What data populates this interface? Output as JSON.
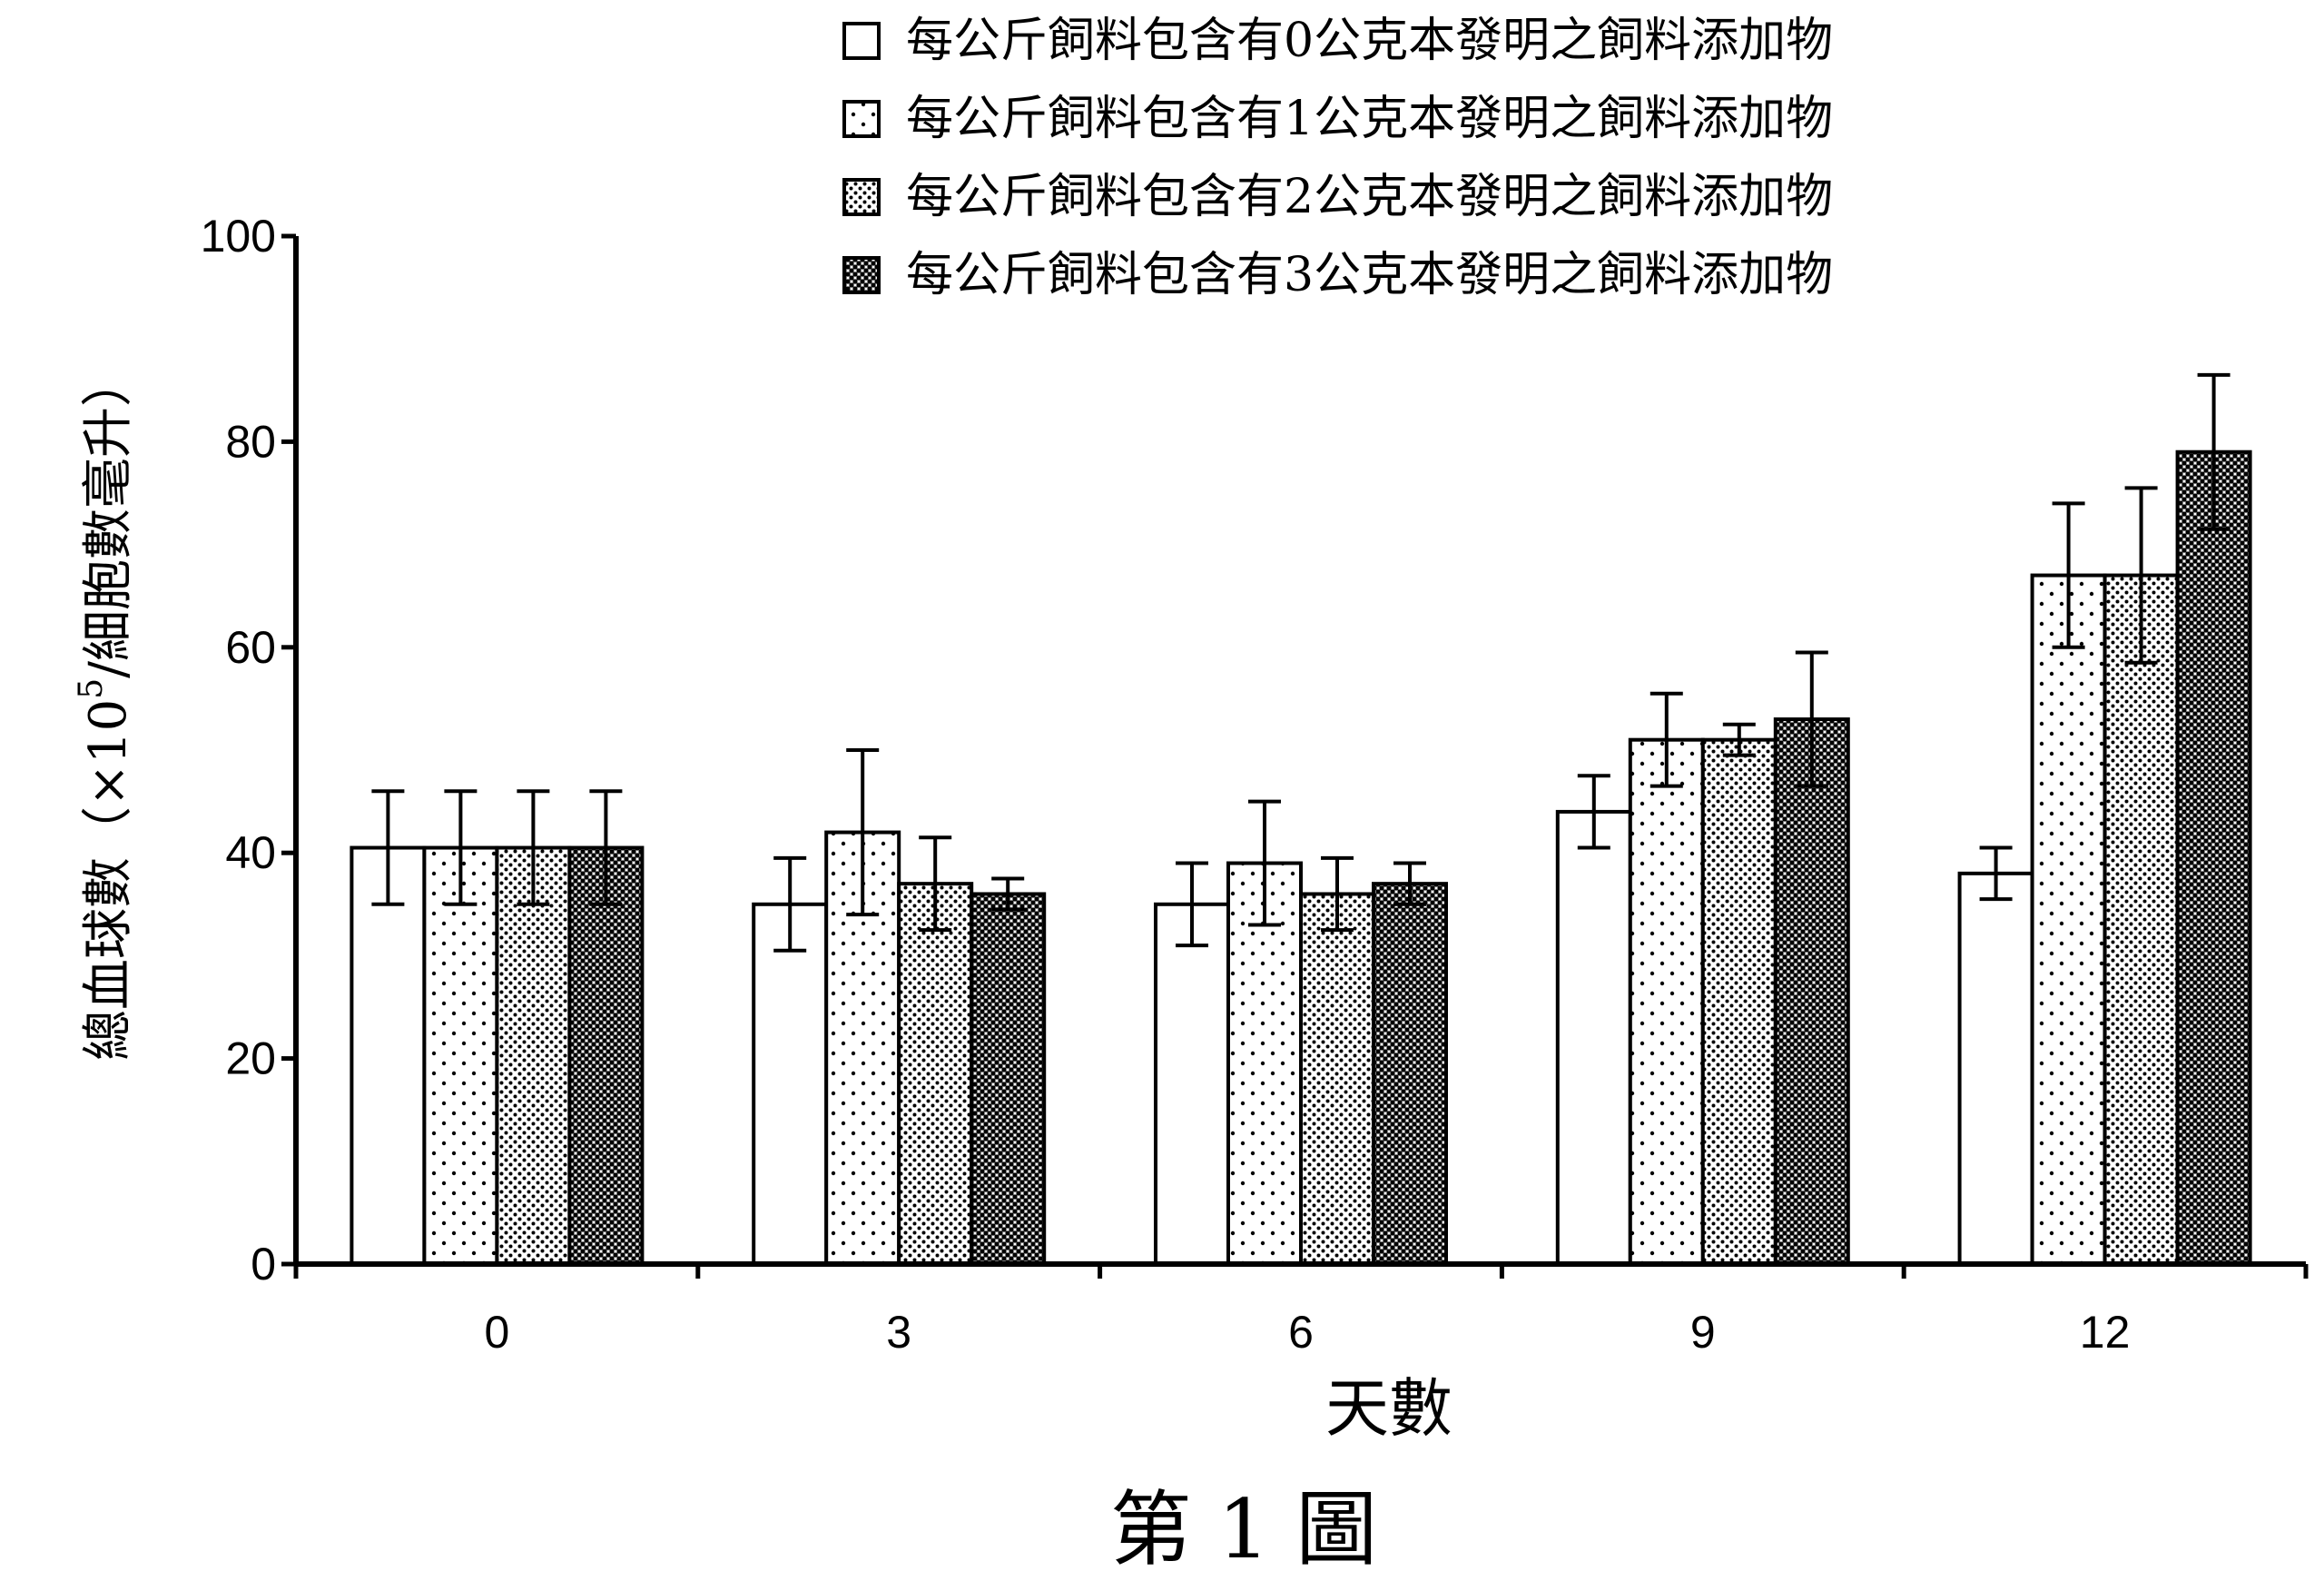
{
  "chart_data": {
    "type": "bar",
    "title": "",
    "caption": "第 1 圖",
    "xlabel": "天數",
    "ylabel_main": "總血球數（×10",
    "ylabel_exp": "5",
    "ylabel_tail": "/細胞數毫升）",
    "ylim": [
      0,
      100
    ],
    "yticks": [
      "0",
      "20",
      "40",
      "60",
      "80",
      "100"
    ],
    "categories": [
      "0",
      "3",
      "6",
      "9",
      "12"
    ],
    "legend_position": "top-right",
    "series": [
      {
        "name": "每公斤飼料包含有0公克本發明之飼料添加物",
        "pattern": "white",
        "values": [
          40.5,
          35,
          35,
          44,
          38
        ],
        "errors": [
          5.5,
          4.5,
          4,
          3.5,
          2.5
        ]
      },
      {
        "name": "每公斤飼料包含有1公克本發明之飼料添加物",
        "pattern": "sparse",
        "values": [
          40.5,
          42,
          39,
          51,
          67
        ],
        "errors": [
          5.5,
          8,
          6,
          4.5,
          7
        ]
      },
      {
        "name": "每公斤飼料包含有2公克本發明之飼料添加物",
        "pattern": "medium",
        "values": [
          40.5,
          37,
          36,
          51,
          67
        ],
        "errors": [
          5.5,
          4.5,
          3.5,
          1.5,
          8.5
        ]
      },
      {
        "name": "每公斤飼料包含有3公克本發明之飼料添加物",
        "pattern": "dense",
        "values": [
          40.5,
          36,
          37,
          53,
          79
        ],
        "errors": [
          5.5,
          1.5,
          2,
          6.5,
          7.5
        ]
      }
    ]
  }
}
